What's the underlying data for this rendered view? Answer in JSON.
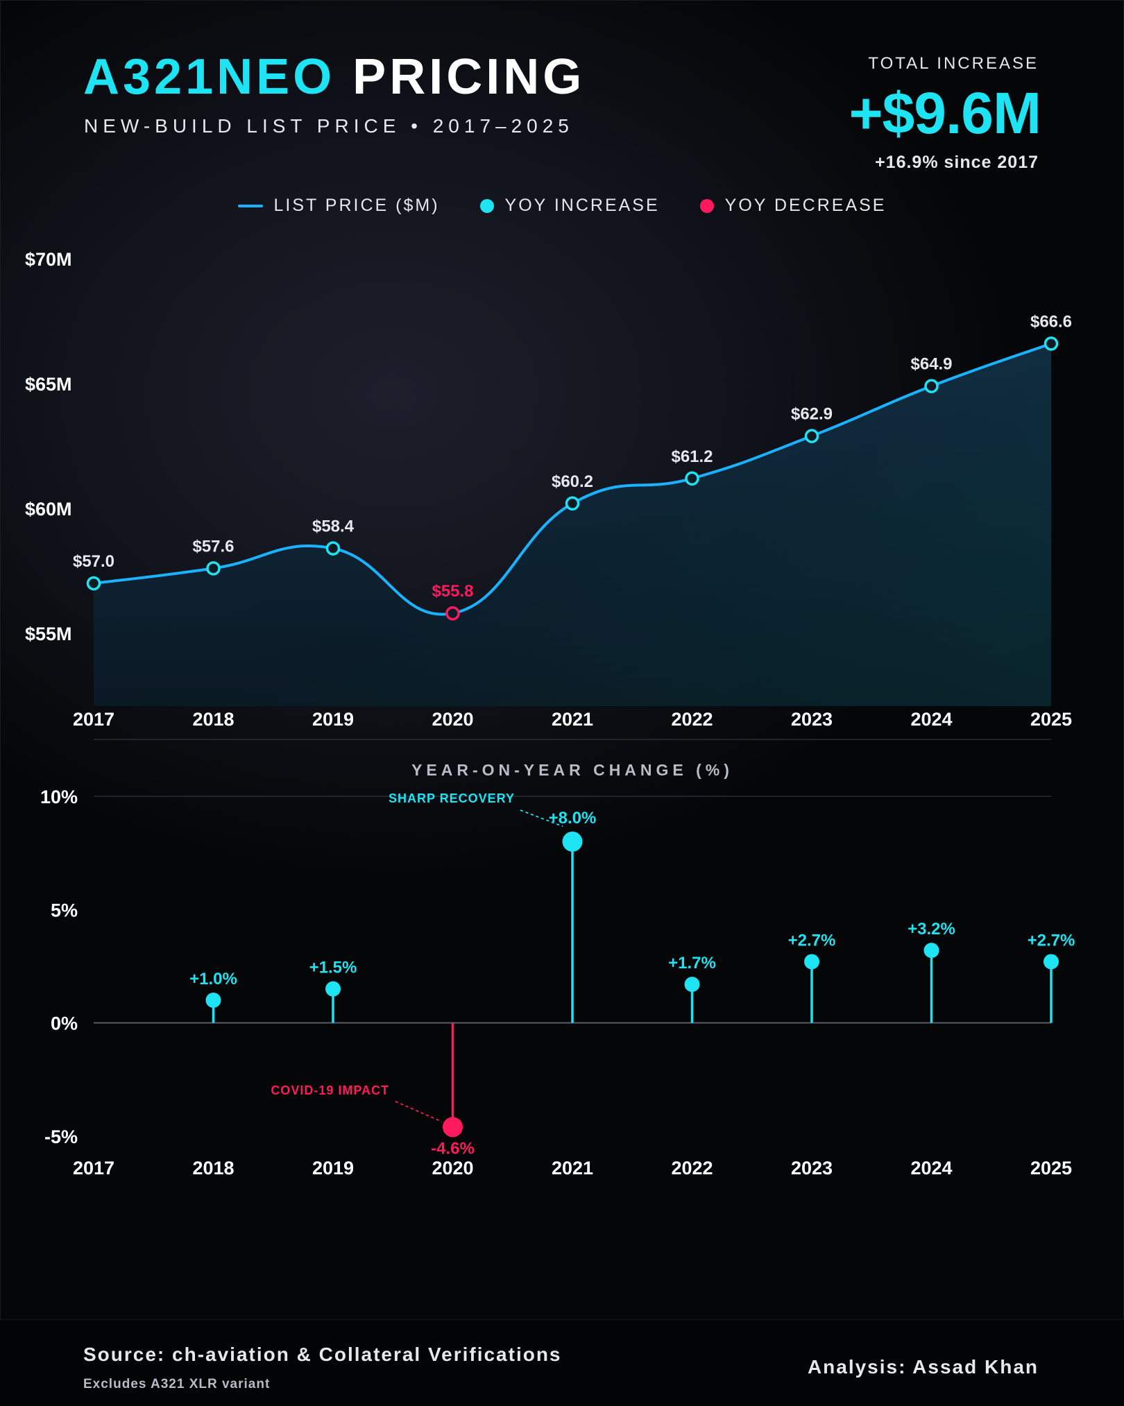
{
  "header": {
    "title_accent": "A321NEO",
    "title_rest": "PRICING",
    "subtitle": "NEW-BUILD LIST PRICE • 2017–2025",
    "total_label": "TOTAL INCREASE",
    "total_value": "+$9.6M",
    "total_sub": "+16.9% since 2017"
  },
  "legend": {
    "line_label": "LIST PRICE ($M)",
    "increase_label": "YOY INCREASE",
    "decrease_label": "YOY DECREASE"
  },
  "colors": {
    "line": "#1bb3ff",
    "increase": "#1ee3f2",
    "decrease": "#ff1a5e",
    "text": "#e6e8ee"
  },
  "chart_data": [
    {
      "type": "area",
      "title": "",
      "x": [
        "2017",
        "2018",
        "2019",
        "2020",
        "2021",
        "2022",
        "2023",
        "2024",
        "2025"
      ],
      "series": [
        {
          "name": "LIST PRICE ($M)",
          "values": [
            57.0,
            57.6,
            58.4,
            55.8,
            60.2,
            61.2,
            62.9,
            64.9,
            66.6
          ],
          "labels": [
            "$57.0",
            "$57.6",
            "$58.4",
            "$55.8",
            "$60.2",
            "$61.2",
            "$62.9",
            "$64.9",
            "$66.6"
          ]
        }
      ],
      "highlight_decrease_index": 3,
      "ylim": [
        55,
        70
      ],
      "yticks": [
        55,
        60,
        65,
        70
      ],
      "ytick_labels": [
        "$55M",
        "$60M",
        "$65M",
        "$70M"
      ],
      "xlabel": "",
      "ylabel": "",
      "grid": false,
      "legend": "top-center"
    },
    {
      "type": "bar",
      "title": "YEAR-ON-YEAR CHANGE (%)",
      "categories": [
        "2017",
        "2018",
        "2019",
        "2020",
        "2021",
        "2022",
        "2023",
        "2024",
        "2025"
      ],
      "values": [
        null,
        1.0,
        1.5,
        -4.6,
        8.0,
        1.7,
        2.7,
        3.2,
        2.7
      ],
      "labels": [
        "",
        "+1.0%",
        "+1.5%",
        "-4.6%",
        "+8.0%",
        "+1.7%",
        "+2.7%",
        "+3.2%",
        "+2.7%"
      ],
      "ylim": [
        -5,
        10
      ],
      "yticks": [
        -5,
        0,
        5,
        10
      ],
      "ytick_labels": [
        "-5%",
        "0%",
        "5%",
        "10%"
      ],
      "annotations": [
        {
          "text": "SHARP RECOVERY",
          "category": "2021"
        },
        {
          "text": "COVID-19 IMPACT",
          "category": "2020"
        }
      ],
      "xlabel": "",
      "ylabel": ""
    }
  ],
  "footer": {
    "source": "Source: ch-aviation & Collateral Verifications",
    "note": "Excludes A321 XLR variant",
    "analysis": "Analysis: Assad Khan"
  }
}
